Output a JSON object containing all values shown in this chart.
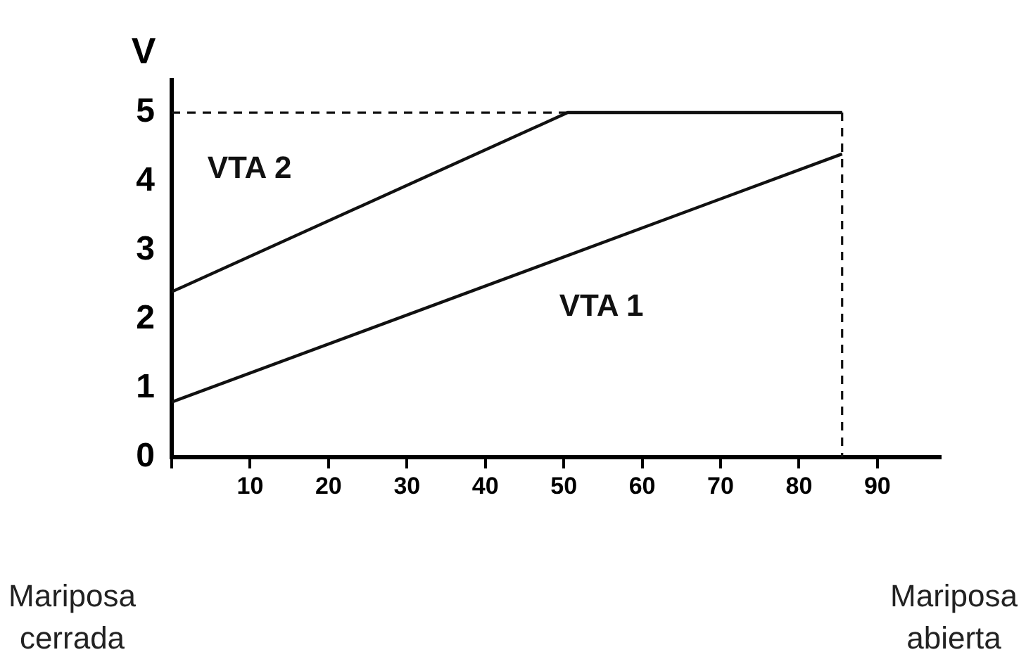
{
  "chart_data": {
    "type": "line",
    "ylabel": "V",
    "series": [
      {
        "name": "VTA 2",
        "color": "#111111",
        "x": [
          0,
          50.5,
          85.5
        ],
        "values": [
          2.4,
          5,
          5
        ]
      },
      {
        "name": "VTA 1",
        "color": "#111111",
        "x": [
          0,
          85.5
        ],
        "values": [
          0.8,
          4.4
        ]
      }
    ],
    "xlim": [
      0,
      98
    ],
    "xticks": [
      {
        "value": 0,
        "label": null
      },
      10,
      20,
      30,
      40,
      50,
      60,
      70,
      80,
      90
    ],
    "ylim": [
      0,
      5.47
    ],
    "yticks": [
      0,
      1,
      2,
      3,
      4,
      5
    ],
    "ref_lines": [
      {
        "axis": "y",
        "value": 5,
        "line_style": "dashed",
        "color": "#111111"
      },
      {
        "axis": "x",
        "value": 85.5,
        "line_style": "dashed",
        "color": "#111111"
      }
    ],
    "annotations": [
      "Mariposa cerrada",
      "Mariposa abierta"
    ],
    "grid": false,
    "legend": false,
    "marker": "none",
    "line_style": "solid"
  }
}
